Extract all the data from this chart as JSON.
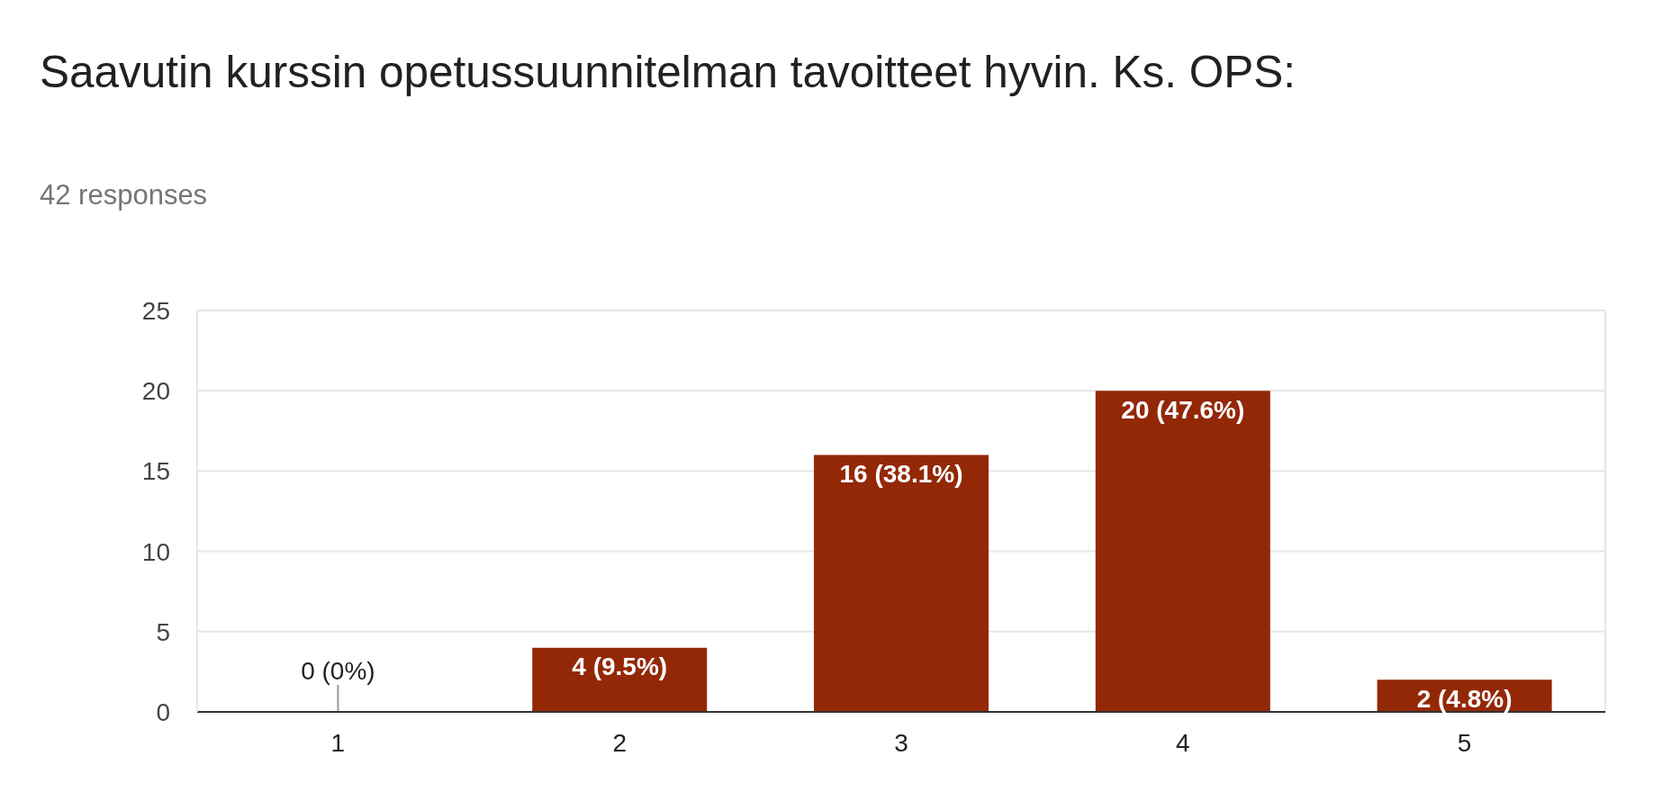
{
  "chart_data": {
    "type": "bar",
    "title": "Saavutin kurssin opetussuunnitelman tavoitteet hyvin. Ks. OPS:",
    "subtitle": "42 responses",
    "categories": [
      "1",
      "2",
      "3",
      "4",
      "5"
    ],
    "values": [
      0,
      4,
      16,
      20,
      2
    ],
    "color": "#932807",
    "value_labels": [
      "0 (0%)",
      "4 (9.5%)",
      "16 (38.1%)",
      "20 (47.6%)",
      "2 (4.8%)"
    ],
    "ylim": [
      0,
      25
    ],
    "yticks": [
      0,
      5,
      10,
      15,
      20,
      25
    ],
    "grid": "y"
  }
}
